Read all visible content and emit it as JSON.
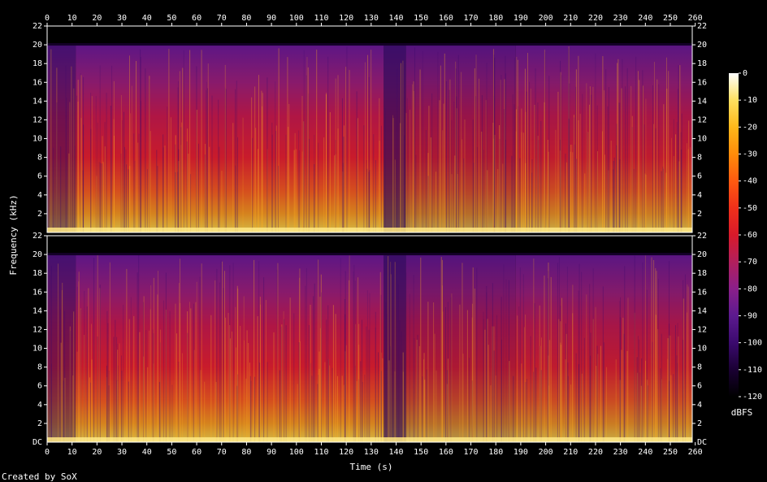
{
  "chart_data": {
    "type": "heatmap",
    "title": "",
    "xlabel": "Time (s)",
    "ylabel": "Frequency (kHz)",
    "xlim": [
      0,
      258.8
    ],
    "ylim": [
      0,
      22
    ],
    "x_ticks": [
      0,
      10,
      20,
      30,
      40,
      50,
      60,
      70,
      80,
      90,
      100,
      110,
      120,
      130,
      140,
      150,
      160,
      170,
      180,
      190,
      200,
      210,
      220,
      230,
      240,
      250,
      260
    ],
    "y_ticks": [
      2,
      4,
      6,
      8,
      10,
      12,
      14,
      16,
      18,
      20,
      22
    ],
    "y_ticks_bottom_channel_zero_label": "DC",
    "channels": 2,
    "grid": false,
    "colorbar": {
      "label": "dBFS",
      "min": -120,
      "max": 0,
      "ticks": [
        0,
        -10,
        -20,
        -30,
        -40,
        -50,
        -60,
        -70,
        -80,
        -90,
        -100,
        -110,
        -120
      ],
      "colors": [
        "#000000",
        "#1a0033",
        "#3b0a6e",
        "#5c1a8f",
        "#8a1f8a",
        "#b21f5c",
        "#d91a2a",
        "#f0301a",
        "#ff5a10",
        "#ff8c0a",
        "#ffb81a",
        "#ffe060",
        "#ffffff"
      ]
    },
    "content_cutoff_khz": 20,
    "segments": [
      {
        "t": [
          0,
          11.5
        ],
        "level": 0.35
      },
      {
        "t": [
          11.5,
          135
        ],
        "level": 0.78
      },
      {
        "t": [
          135,
          144
        ],
        "level": 0.2
      },
      {
        "t": [
          144,
          188
        ],
        "level": 0.62
      },
      {
        "t": [
          188,
          258.8
        ],
        "level": 0.72
      }
    ]
  },
  "footer": {
    "credit": "Created by SoX"
  }
}
